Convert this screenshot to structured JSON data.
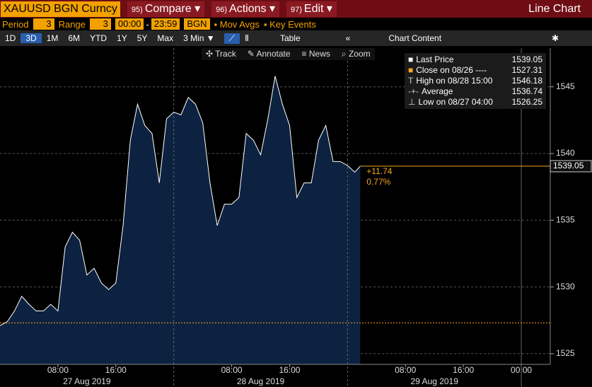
{
  "toolbar": {
    "ticker": "XAUUSD BGN Curncy",
    "menus": [
      {
        "code": "95)",
        "label": "Compare"
      },
      {
        "code": "96)",
        "label": "Actions"
      },
      {
        "code": "97)",
        "label": "Edit"
      }
    ],
    "view": "Line Chart"
  },
  "settings": {
    "period_label": "Period",
    "period": "3",
    "range_label": "Range",
    "range": "3",
    "start": "00:00",
    "separator": "-",
    "end": "23:59",
    "source": "BGN",
    "mov_avgs": "Mov Avgs",
    "key_events": "Key Events"
  },
  "timeframes": [
    "1D",
    "3D",
    "1M",
    "6M",
    "YTD",
    "1Y",
    "5Y",
    "Max"
  ],
  "interval": "3 Min",
  "table": "Table",
  "chart_content": "Chart Content",
  "tools": [
    "Track",
    "Annotate",
    "News",
    "Zoom"
  ],
  "chart_data": {
    "type": "area",
    "color": "#ffffff",
    "fill": "#0c2240",
    "x": [
      "2019-08-27T00:00",
      "2019-08-27T01:00",
      "2019-08-27T02:00",
      "2019-08-27T03:00",
      "2019-08-27T04:00",
      "2019-08-27T05:00",
      "2019-08-27T06:00",
      "2019-08-27T07:00",
      "2019-08-27T08:00",
      "2019-08-27T09:00",
      "2019-08-27T10:00",
      "2019-08-27T11:00",
      "2019-08-27T12:00",
      "2019-08-27T13:00",
      "2019-08-27T14:00",
      "2019-08-27T15:00",
      "2019-08-27T16:00",
      "2019-08-27T17:00",
      "2019-08-27T18:00",
      "2019-08-27T19:00",
      "2019-08-27T20:00",
      "2019-08-27T21:00",
      "2019-08-27T22:00",
      "2019-08-27T23:00",
      "2019-08-28T00:00",
      "2019-08-28T01:00",
      "2019-08-28T02:00",
      "2019-08-28T03:00",
      "2019-08-28T04:00",
      "2019-08-28T05:00",
      "2019-08-28T06:00",
      "2019-08-28T07:00",
      "2019-08-28T08:00",
      "2019-08-28T09:00",
      "2019-08-28T10:00",
      "2019-08-28T11:00",
      "2019-08-28T12:00",
      "2019-08-28T13:00",
      "2019-08-28T14:00",
      "2019-08-28T15:00",
      "2019-08-28T16:00",
      "2019-08-28T17:00",
      "2019-08-28T18:00",
      "2019-08-28T19:00",
      "2019-08-28T20:00",
      "2019-08-28T21:00",
      "2019-08-28T22:00",
      "2019-08-28T23:00",
      "2019-08-29T00:00",
      "2019-08-29T01:00",
      "2019-08-29T01:45"
    ],
    "values": [
      1527.1,
      1527.4,
      1528.2,
      1529.3,
      1528.7,
      1528.2,
      1528.2,
      1528.7,
      1528.2,
      1533.0,
      1534.1,
      1533.5,
      1530.9,
      1531.4,
      1530.3,
      1529.8,
      1530.3,
      1534.6,
      1541.0,
      1543.7,
      1542.1,
      1541.5,
      1537.8,
      1542.6,
      1543.1,
      1542.9,
      1544.2,
      1543.7,
      1542.3,
      1537.8,
      1534.6,
      1536.2,
      1536.2,
      1536.7,
      1541.5,
      1541.0,
      1539.9,
      1542.6,
      1545.8,
      1543.7,
      1542.1,
      1536.7,
      1537.8,
      1537.8,
      1541.0,
      1542.1,
      1539.4,
      1539.4,
      1539.1,
      1538.6,
      1539.05
    ],
    "xlim": [
      "2019-08-27T00:00",
      "2019-08-30T04:00"
    ],
    "xticks": [
      {
        "value": "2019-08-27T08:00",
        "label": "08:00"
      },
      {
        "value": "2019-08-27T16:00",
        "label": "16:00"
      },
      {
        "value": "2019-08-28T08:00",
        "label": "08:00"
      },
      {
        "value": "2019-08-28T16:00",
        "label": "16:00"
      },
      {
        "value": "2019-08-29T08:00",
        "label": "08:00"
      },
      {
        "value": "2019-08-29T16:00",
        "label": "16:00"
      },
      {
        "value": "2019-08-30T00:00",
        "label": "00:00"
      }
    ],
    "x_dates": [
      {
        "value": "2019-08-27T00:00",
        "label": "27 Aug 2019"
      },
      {
        "value": "2019-08-28T00:00",
        "label": "28 Aug 2019"
      },
      {
        "value": "2019-08-29T00:00",
        "label": "29 Aug 2019"
      }
    ],
    "ylim": [
      1524.2,
      1547.9
    ],
    "yticks": [
      1525,
      1530,
      1535,
      1540,
      1545
    ],
    "grid": true,
    "legend": [
      {
        "label": "Last Price",
        "value": 1539.05
      },
      {
        "label": "Close on 08/26 ----",
        "value": 1527.31
      },
      {
        "label": "High on 08/28 15:00",
        "value": 1546.18
      },
      {
        "label": "Average",
        "value": 1536.74
      },
      {
        "label": "Low on 08/27 04:00",
        "value": 1526.25
      }
    ],
    "change": "+11.74",
    "change_pct": "0.77%",
    "line_color": "#f5a623"
  }
}
